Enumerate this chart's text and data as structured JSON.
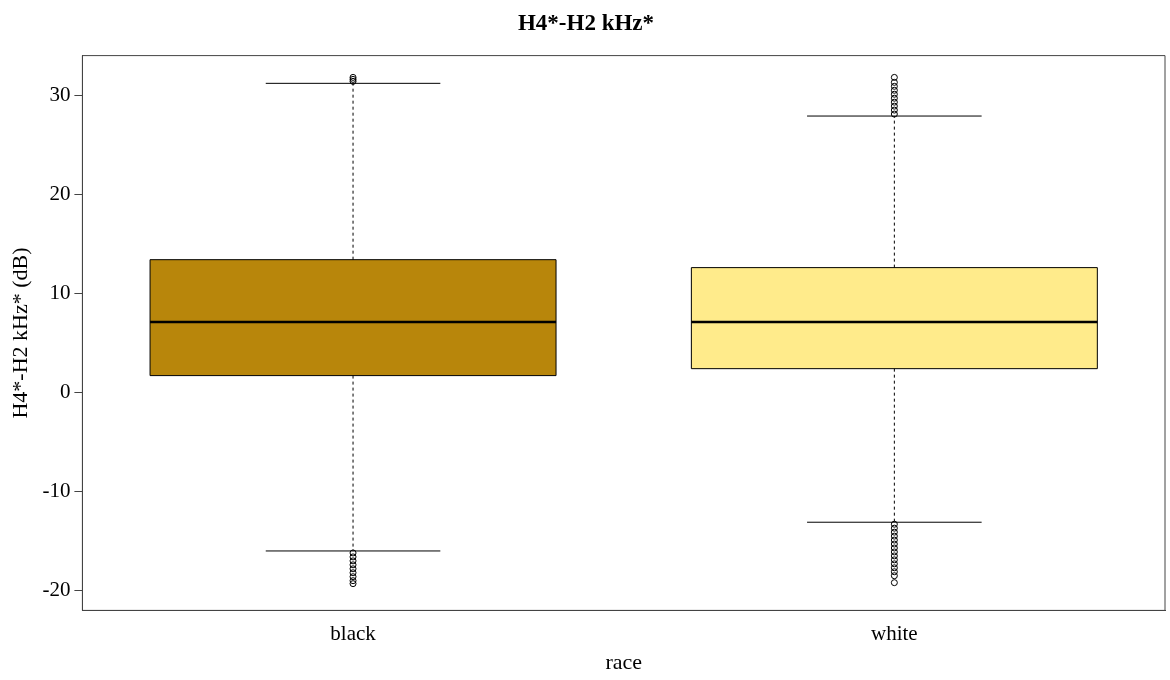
{
  "chart_data": {
    "type": "box",
    "title": "H4*-H2 kHz*",
    "xlabel": "race",
    "ylabel": "H4*-H2 kHz* (dB)",
    "categories": [
      "black",
      "white"
    ],
    "colors": [
      "#b8860b",
      "#ffeb8b"
    ],
    "boxes": [
      {
        "low": -16.0,
        "q1": 1.7,
        "median": 7.1,
        "q3": 13.4,
        "high": 31.2,
        "outliers": [
          31.4,
          31.6,
          31.8,
          -16.2,
          -16.6,
          -17.0,
          -17.4,
          -17.8,
          -18.2,
          -18.6,
          -19.0,
          -19.3
        ]
      },
      {
        "low": -13.1,
        "q1": 2.4,
        "median": 7.1,
        "q3": 12.6,
        "high": 27.9,
        "outliers": [
          28.1,
          28.5,
          28.9,
          29.3,
          29.7,
          30.1,
          30.5,
          30.9,
          31.3,
          31.8,
          -13.3,
          -13.7,
          -14.1,
          -14.5,
          -14.9,
          -15.3,
          -15.7,
          -16.1,
          -16.5,
          -16.9,
          -17.3,
          -17.7,
          -18.1,
          -18.5,
          -19.2
        ]
      }
    ],
    "ylim": [
      -22,
      34
    ],
    "yticks": [
      -20,
      -10,
      0,
      10,
      20,
      30
    ],
    "grid": false,
    "legend": false
  }
}
